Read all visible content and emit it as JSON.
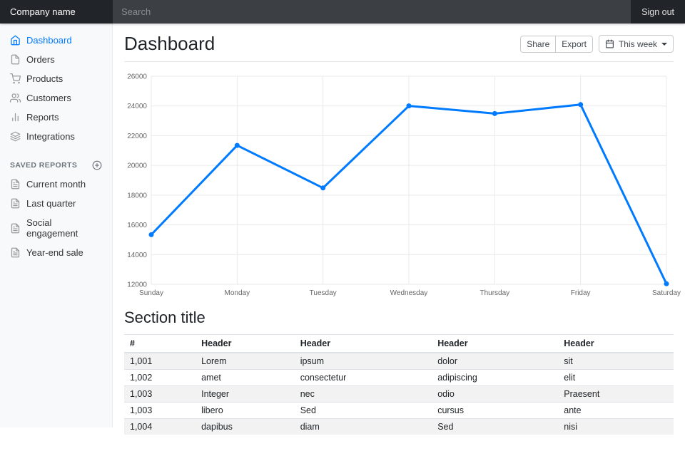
{
  "navbar": {
    "brand": "Company name",
    "search_placeholder": "Search",
    "signout": "Sign out"
  },
  "sidebar": {
    "items": [
      {
        "label": "Dashboard",
        "icon": "home",
        "active": true
      },
      {
        "label": "Orders",
        "icon": "file",
        "active": false
      },
      {
        "label": "Products",
        "icon": "shopping-cart",
        "active": false
      },
      {
        "label": "Customers",
        "icon": "users",
        "active": false
      },
      {
        "label": "Reports",
        "icon": "bar-chart",
        "active": false
      },
      {
        "label": "Integrations",
        "icon": "layers",
        "active": false
      }
    ],
    "saved_reports_heading": "Saved reports",
    "saved_reports": [
      {
        "label": "Current month",
        "icon": "file-text"
      },
      {
        "label": "Last quarter",
        "icon": "file-text"
      },
      {
        "label": "Social engagement",
        "icon": "file-text"
      },
      {
        "label": "Year-end sale",
        "icon": "file-text"
      }
    ]
  },
  "main": {
    "title": "Dashboard",
    "toolbar": {
      "share": "Share",
      "export": "Export",
      "week": "This week"
    },
    "section_title": "Section title"
  },
  "chart_data": {
    "type": "line",
    "categories": [
      "Sunday",
      "Monday",
      "Tuesday",
      "Wednesday",
      "Thursday",
      "Friday",
      "Saturday"
    ],
    "values": [
      15339,
      21345,
      18483,
      24003,
      23489,
      24092,
      12034
    ],
    "title": "",
    "xlabel": "",
    "ylabel": "",
    "ylim": [
      12000,
      26000
    ],
    "ytick_step": 2000,
    "line_color": "#007bff",
    "grid": true,
    "legend": "none"
  },
  "table": {
    "headers": [
      "#",
      "Header",
      "Header",
      "Header",
      "Header"
    ],
    "rows": [
      [
        "1,001",
        "Lorem",
        "ipsum",
        "dolor",
        "sit"
      ],
      [
        "1,002",
        "amet",
        "consectetur",
        "adipiscing",
        "elit"
      ],
      [
        "1,003",
        "Integer",
        "nec",
        "odio",
        "Praesent"
      ],
      [
        "1,003",
        "libero",
        "Sed",
        "cursus",
        "ante"
      ],
      [
        "1,004",
        "dapibus",
        "diam",
        "Sed",
        "nisi"
      ]
    ]
  }
}
